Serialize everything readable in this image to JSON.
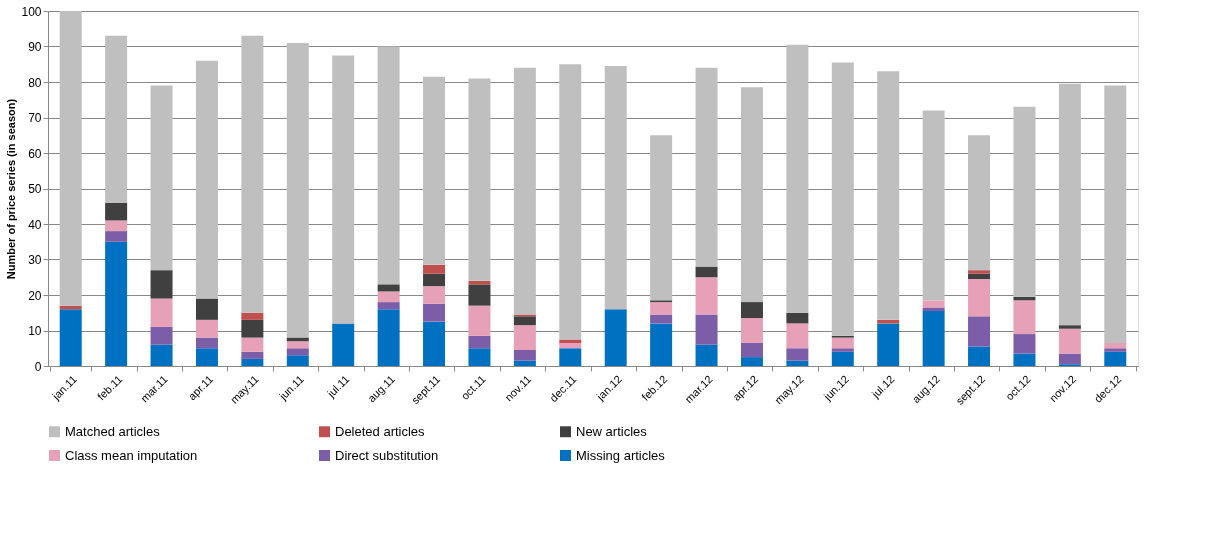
{
  "chart_data": {
    "type": "bar",
    "stacked": true,
    "ylabel": "Number of price series (in season)",
    "categories": [
      "jan.11",
      "feb.11",
      "mar.11",
      "apr.11",
      "may.11",
      "jun.11",
      "jul.11",
      "aug.11",
      "sept.11",
      "oct.11",
      "nov.11",
      "dec.11",
      "jan.12",
      "feb.12",
      "mar.12",
      "apr.12",
      "may.12",
      "jun.12",
      "jul.12",
      "aug.12",
      "sept.12",
      "oct.12",
      "nov.12",
      "dec.12"
    ],
    "series": [
      {
        "name": "Missing articles",
        "color": "#0070c0",
        "values": [
          16,
          35,
          6,
          5,
          2,
          3,
          12,
          16,
          12.5,
          5,
          1.5,
          5,
          16,
          12,
          6,
          2.5,
          1.5,
          4,
          12,
          15.5,
          5.5,
          3.5,
          0.5,
          4
        ]
      },
      {
        "name": "Direct substitution",
        "color": "#7b5ea7",
        "values": [
          null,
          3,
          5,
          3,
          2,
          2,
          null,
          2,
          5,
          3.5,
          3,
          null,
          null,
          2.5,
          8.5,
          4,
          3.5,
          1,
          null,
          1,
          8.5,
          5.5,
          3,
          1
        ]
      },
      {
        "name": "Class mean imputation",
        "color": "#e6a0b8",
        "values": [
          null,
          3,
          8,
          5,
          4,
          2,
          null,
          3,
          5,
          8.5,
          7,
          1.5,
          null,
          3.5,
          10.5,
          7,
          7,
          3,
          null,
          2,
          10.5,
          9.5,
          7,
          1.5
        ]
      },
      {
        "name": "New articles",
        "color": "#404040",
        "values": [
          null,
          5,
          8,
          6,
          5,
          1,
          null,
          2,
          3.5,
          6,
          2.5,
          null,
          null,
          0.5,
          3,
          4.5,
          3,
          0.5,
          null,
          null,
          1.5,
          1,
          1,
          null
        ]
      },
      {
        "name": "Deleted articles",
        "color": "#c0504d",
        "values": [
          1,
          null,
          null,
          null,
          2,
          null,
          null,
          null,
          2.5,
          1,
          0.5,
          1,
          null,
          null,
          null,
          null,
          null,
          null,
          1,
          null,
          1,
          null,
          null,
          null
        ]
      },
      {
        "name": "Matched articles",
        "color": "#bfbfbf",
        "values": [
          83,
          47,
          52,
          67,
          78,
          83,
          75.5,
          67,
          53,
          57,
          69.5,
          77.5,
          68.5,
          46.5,
          56,
          60.5,
          75.5,
          77,
          70,
          53.5,
          38,
          53.5,
          68,
          72.5
        ]
      }
    ],
    "ylim": [
      0,
      100
    ],
    "yticks": [
      0,
      10,
      20,
      30,
      40,
      50,
      60,
      70,
      80,
      90,
      100
    ],
    "grid": "y",
    "legend": "bottom"
  }
}
